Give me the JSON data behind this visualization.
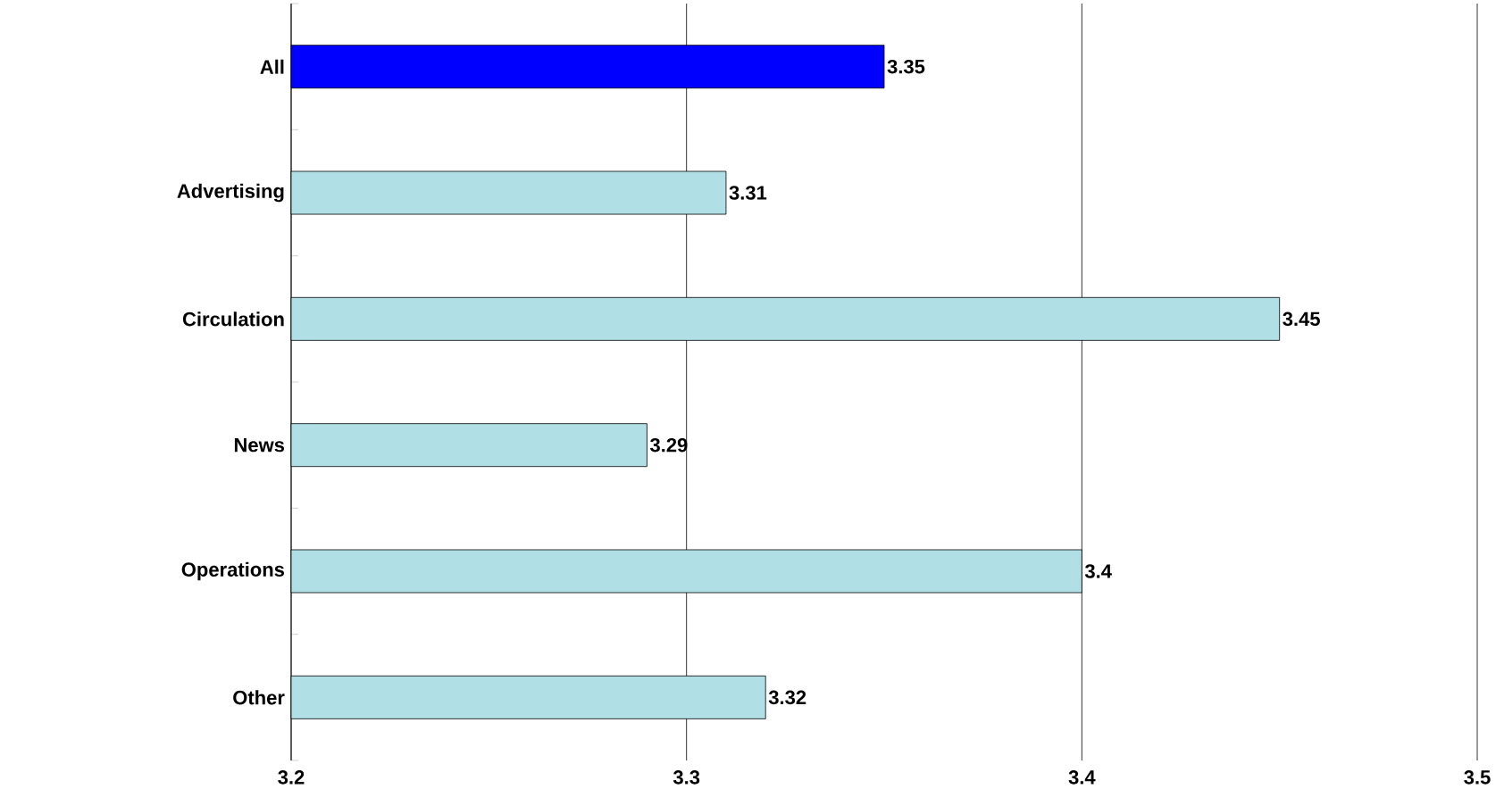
{
  "chart_data": {
    "type": "bar",
    "orientation": "horizontal",
    "categories": [
      "All",
      "Advertising",
      "Circulation",
      "News",
      "Operations",
      "Other"
    ],
    "values": [
      3.35,
      3.31,
      3.45,
      3.29,
      3.4,
      3.32
    ],
    "colors": [
      "#0000ff",
      "#b0e0e6",
      "#b0e0e6",
      "#b0e0e6",
      "#b0e0e6",
      "#b0e0e6"
    ],
    "xlim": [
      3.2,
      3.5
    ],
    "xticks": [
      3.2,
      3.3,
      3.4,
      3.5
    ],
    "grid": "x",
    "data_labels": true
  }
}
